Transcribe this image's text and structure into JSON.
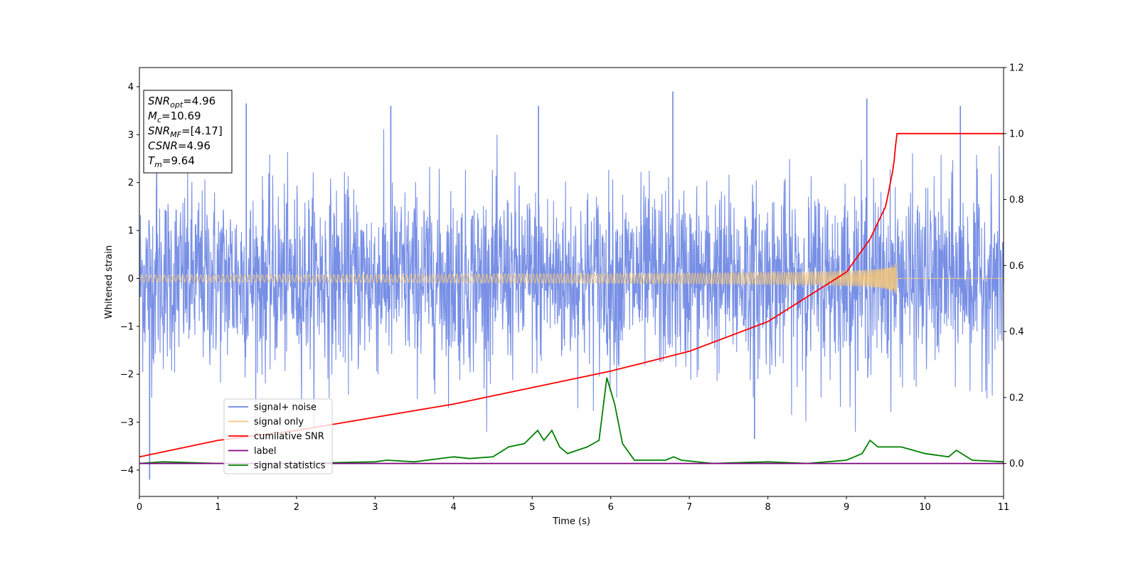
{
  "chart_data": {
    "type": "line",
    "title": "",
    "xlabel": "Time (s)",
    "ylabel": "Whitened strain",
    "xlim": [
      0,
      11
    ],
    "ylim": [
      -4.55,
      4.4
    ],
    "ylim_right": [
      -0.1,
      1.2
    ],
    "xticks": [
      0,
      1,
      2,
      3,
      4,
      5,
      6,
      7,
      8,
      9,
      10,
      11
    ],
    "yticks": [
      -4,
      -3,
      -2,
      -1,
      0,
      1,
      2,
      3,
      4
    ],
    "yticks_right": [
      0.0,
      0.2,
      0.4,
      0.6,
      0.8,
      1.0,
      1.2
    ],
    "yticks_right_labels": [
      "0.0",
      "0.2",
      "0.4",
      "0.6",
      "0.8",
      "1.0",
      "1.2"
    ],
    "grid": false,
    "legend_position": "lower-left",
    "colors": {
      "signal_noise": "#6b86e3",
      "signal_only": "#f5c87a",
      "cumulative": "#ff0000",
      "label": "#800080",
      "statistics": "#008000"
    },
    "series": [
      {
        "name": "signal+ noise",
        "axis": "left",
        "description_values": {
          "typical_envelope": [
            -1.6,
            1.6
          ],
          "peaks": [
            {
              "x": 0.13,
              "y": -4.2
            },
            {
              "x": 0.22,
              "y": 3.9
            },
            {
              "x": 1.36,
              "y": 3.65
            },
            {
              "x": 3.2,
              "y": 3.6
            },
            {
              "x": 5.08,
              "y": 3.6
            },
            {
              "x": 6.79,
              "y": 3.9
            },
            {
              "x": 9.26,
              "y": 3.75
            },
            {
              "x": 7.83,
              "y": -3.35
            },
            {
              "x": 10.45,
              "y": 3.6
            }
          ]
        }
      },
      {
        "name": "signal only",
        "axis": "left",
        "merger_time": 9.64,
        "peak_amplitude": 0.65
      },
      {
        "name": "cumilative SNR",
        "axis": "right",
        "x": [
          0,
          1,
          2,
          3,
          4,
          5,
          6,
          7,
          8,
          9,
          9.3,
          9.5,
          9.6,
          9.64,
          11
        ],
        "values": [
          0.02,
          0.07,
          0.1,
          0.14,
          0.18,
          0.23,
          0.28,
          0.34,
          0.43,
          0.58,
          0.68,
          0.78,
          0.9,
          1.0,
          1.0
        ]
      },
      {
        "name": "label",
        "axis": "right",
        "x": [
          0,
          11
        ],
        "values": [
          0.0,
          0.0
        ]
      },
      {
        "name": "signal statistics",
        "axis": "right",
        "x": [
          0,
          0.3,
          1.0,
          2.0,
          3.0,
          3.15,
          3.5,
          4.0,
          4.2,
          4.5,
          4.7,
          4.9,
          5.07,
          5.15,
          5.25,
          5.35,
          5.45,
          5.7,
          5.85,
          5.95,
          6.05,
          6.15,
          6.3,
          6.7,
          6.8,
          6.9,
          7.3,
          8.0,
          8.5,
          9.0,
          9.2,
          9.3,
          9.4,
          9.7,
          10.0,
          10.3,
          10.4,
          10.6,
          11
        ],
        "values": [
          0.0,
          0.005,
          0.0,
          0.0,
          0.005,
          0.01,
          0.005,
          0.02,
          0.015,
          0.02,
          0.05,
          0.06,
          0.1,
          0.07,
          0.1,
          0.05,
          0.03,
          0.05,
          0.07,
          0.26,
          0.18,
          0.06,
          0.01,
          0.01,
          0.02,
          0.01,
          0.0,
          0.005,
          0.0,
          0.01,
          0.03,
          0.07,
          0.05,
          0.05,
          0.03,
          0.02,
          0.04,
          0.01,
          0.005
        ]
      }
    ],
    "annotation": [
      {
        "sym": "SNR",
        "sub": "opt",
        "rest": "=4.96"
      },
      {
        "sym": "M",
        "sub": "c",
        "rest": "=10.69"
      },
      {
        "sym": "SNR",
        "sub": "MF",
        "rest": "=[4.17]"
      },
      {
        "sym": "CSNR",
        "sub": "",
        "rest": "=4.96"
      },
      {
        "sym": "T",
        "sub": "m",
        "rest": "=9.64"
      }
    ]
  }
}
